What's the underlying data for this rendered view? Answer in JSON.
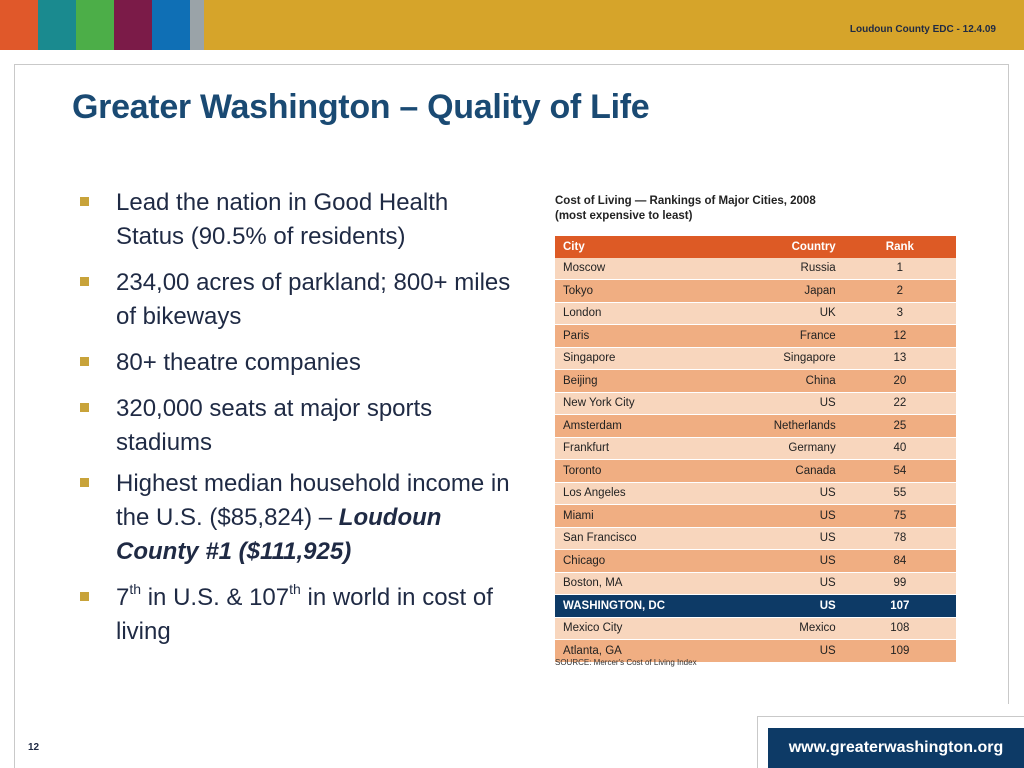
{
  "header": {
    "tagline": "Loudoun County EDC - 12.4.09",
    "band_color": "#d6a42a",
    "swatches": [
      "#e0582a",
      "#1a8a8f",
      "#4cae48",
      "#7b1b48",
      "#0f6fb5",
      "#9aa3a8"
    ]
  },
  "title": "Greater Washington – Quality of Life",
  "bullets": [
    {
      "text": "Lead the nation in Good Health Status (90.5% of residents)"
    },
    {
      "text": "234,00 acres of parkland; 800+ miles of bikeways"
    },
    {
      "text": "80+ theatre companies"
    },
    {
      "text": "320,000 seats at major sports stadiums"
    },
    {
      "text_a": "Highest median household income in the U.S. ($85,824) – ",
      "text_b": "Loudoun County #1 ($111,925)"
    },
    {
      "part1": "7",
      "sup1": "th",
      "part2": " in U.S. & 107",
      "sup2": "th",
      "part3": " in world in cost of living"
    }
  ],
  "table": {
    "caption_line1": "Cost of Living — Rankings of Major Cities, 2008",
    "caption_line2": "(most expensive to least)",
    "columns": [
      "City",
      "Country",
      "Rank"
    ],
    "rows": [
      [
        "Moscow",
        "Russia",
        "1"
      ],
      [
        "Tokyo",
        "Japan",
        "2"
      ],
      [
        "London",
        "UK",
        "3"
      ],
      [
        "Paris",
        "France",
        "12"
      ],
      [
        "Singapore",
        "Singapore",
        "13"
      ],
      [
        "Beijing",
        "China",
        "20"
      ],
      [
        "New York City",
        "US",
        "22"
      ],
      [
        "Amsterdam",
        "Netherlands",
        "25"
      ],
      [
        "Frankfurt",
        "Germany",
        "40"
      ],
      [
        "Toronto",
        "Canada",
        "54"
      ],
      [
        "Los Angeles",
        "US",
        "55"
      ],
      [
        "Miami",
        "US",
        "75"
      ],
      [
        "San Francisco",
        "US",
        "78"
      ],
      [
        "Chicago",
        "US",
        "84"
      ],
      [
        "Boston, MA",
        "US",
        "99"
      ],
      [
        "WASHINGTON, DC",
        "US",
        "107"
      ],
      [
        "Mexico City",
        "Mexico",
        "108"
      ],
      [
        "Atlanta, GA",
        "US",
        "109"
      ]
    ],
    "highlight_row": 15,
    "source": "SOURCE:  Mercer's Cost of Living Index"
  },
  "footer": {
    "slide_number": "12",
    "url": "www.greaterwashington.org"
  },
  "colors": {
    "title": "#1a4a73",
    "table_header": "#dd5a25",
    "row_light": "#f8d6bd",
    "row_dark": "#f0ae82",
    "highlight": "#0d3a66"
  }
}
